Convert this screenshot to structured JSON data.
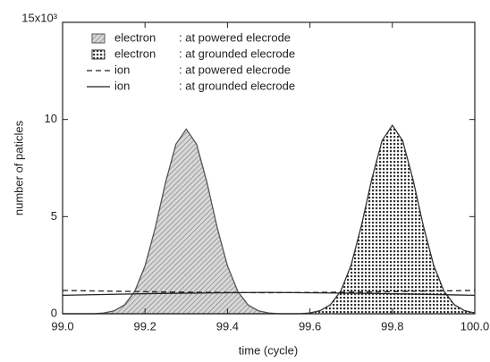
{
  "chart_data": {
    "type": "line",
    "xlabel": "time (cycle)",
    "ylabel": "number of paticles",
    "xlim": [
      99.0,
      100.0
    ],
    "xticks": [
      {
        "value": 99,
        "label": "99.0"
      },
      99.2,
      99.4,
      99.6,
      99.8,
      {
        "value": 100,
        "label": "100.0"
      }
    ],
    "ylim": [
      0,
      15
    ],
    "yticks": [
      0,
      5,
      10,
      {
        "value": 15,
        "label": "15x10³"
      }
    ],
    "x": [
      99.0,
      99.025,
      99.05,
      99.075,
      99.1,
      99.125,
      99.15,
      99.175,
      99.2,
      99.225,
      99.25,
      99.275,
      99.3,
      99.325,
      99.35,
      99.375,
      99.4,
      99.425,
      99.45,
      99.475,
      99.5,
      99.525,
      99.55,
      99.575,
      99.6,
      99.625,
      99.65,
      99.675,
      99.7,
      99.725,
      99.75,
      99.775,
      99.8,
      99.825,
      99.85,
      99.875,
      99.9,
      99.925,
      99.95,
      99.975,
      100.0
    ],
    "series": [
      {
        "name": "electron",
        "location": ": at powered elecrode",
        "style": "hatched",
        "color": "#555555",
        "values": [
          0,
          0,
          0,
          0,
          0.04,
          0.15,
          0.45,
          1.15,
          2.46,
          4.44,
          6.78,
          8.73,
          9.5,
          8.73,
          6.78,
          4.44,
          2.46,
          1.15,
          0.45,
          0.15,
          0.04,
          0,
          0,
          0,
          0,
          0,
          0,
          0,
          0,
          0,
          0,
          0,
          0,
          0,
          0,
          0,
          0,
          0,
          0,
          0,
          0
        ]
      },
      {
        "name": "electron",
        "location": ": at grounded elecrode",
        "style": "dotted-grid",
        "color": "#333333",
        "values": [
          0,
          0,
          0,
          0,
          0,
          0,
          0,
          0,
          0,
          0,
          0,
          0,
          0,
          0,
          0,
          0,
          0,
          0,
          0,
          0,
          0,
          0,
          0,
          0,
          0.04,
          0.16,
          0.47,
          1.17,
          2.51,
          4.54,
          6.92,
          8.91,
          9.7,
          8.91,
          6.92,
          4.54,
          2.51,
          1.17,
          0.47,
          0.16,
          0.04
        ]
      },
      {
        "name": "ion",
        "location": ": at powered elecrode",
        "style": "dashed",
        "color": "#222222",
        "x": [
          99.0,
          99.25,
          99.5,
          99.75,
          100.0
        ],
        "values": [
          1.2,
          1.12,
          1.08,
          1.12,
          1.2
        ]
      },
      {
        "name": "ion",
        "location": ": at grounded elecrode",
        "style": "solid",
        "color": "#222222",
        "x": [
          99.0,
          99.25,
          99.5,
          99.75,
          100.0
        ],
        "values": [
          0.95,
          1.05,
          1.1,
          1.05,
          0.95
        ]
      }
    ]
  }
}
